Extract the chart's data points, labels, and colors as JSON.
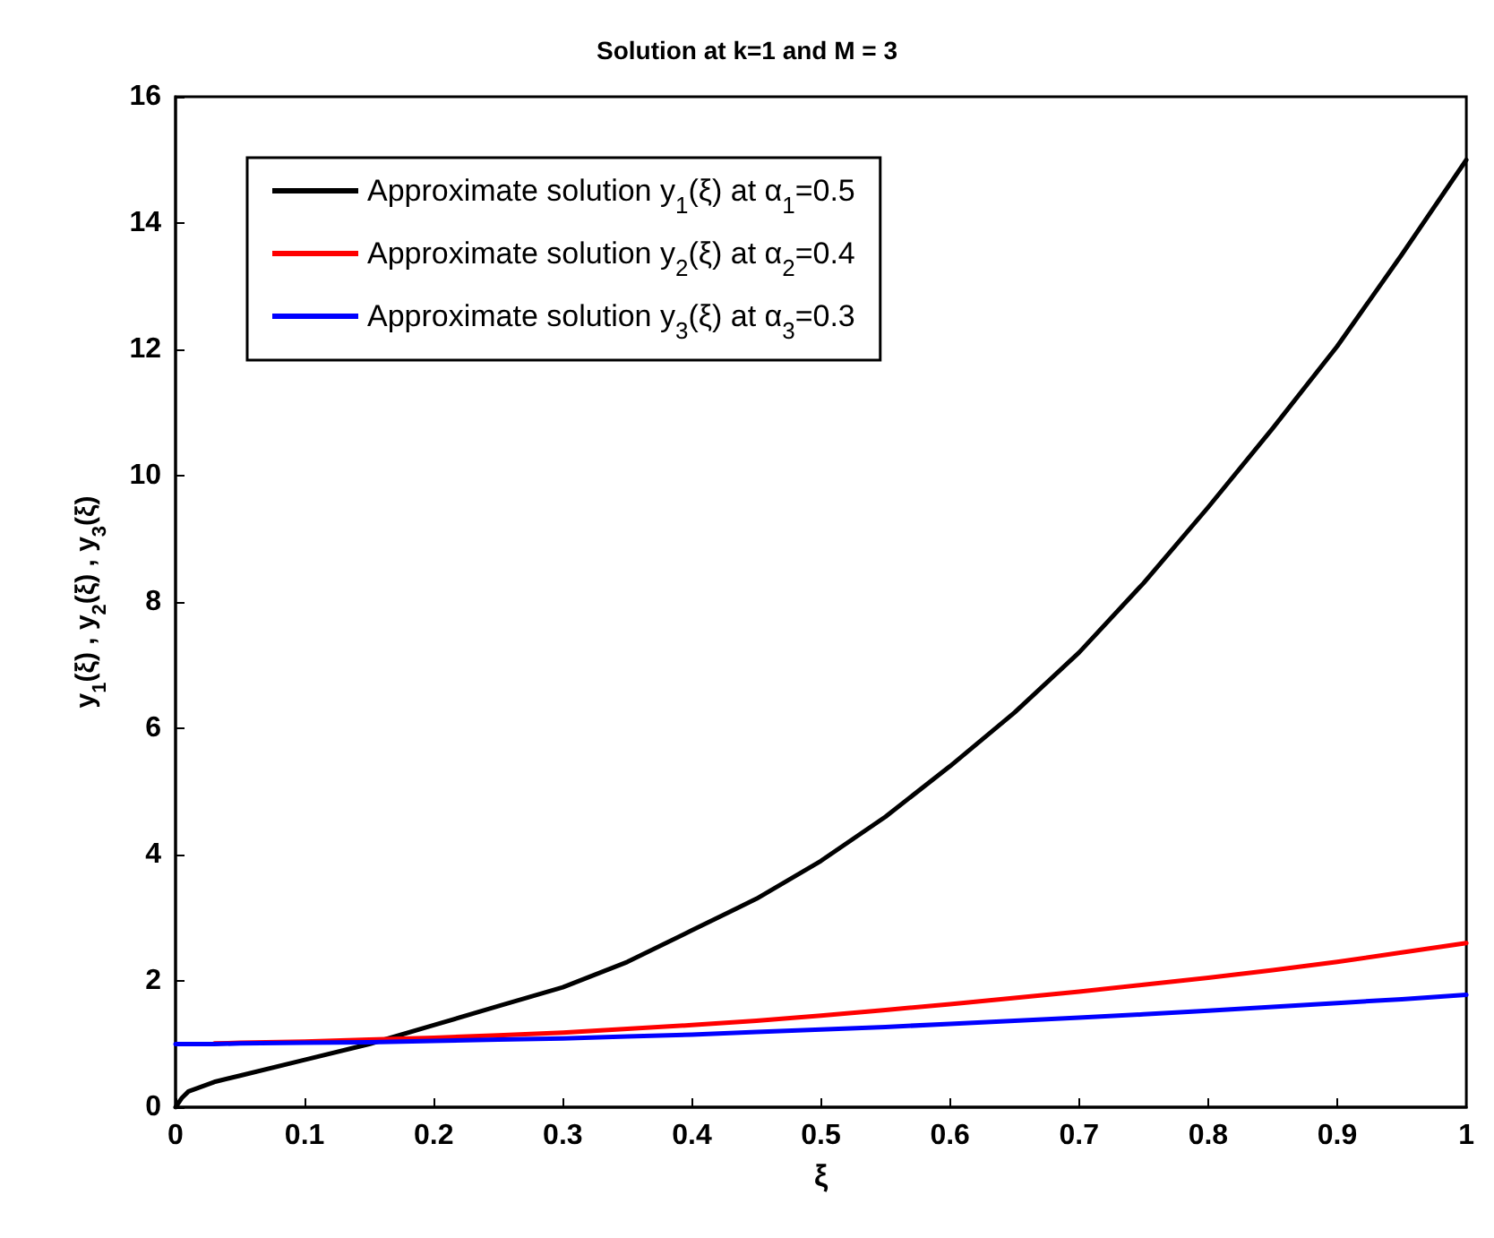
{
  "chart_data": {
    "type": "line",
    "title": "Solution at k=1 and M = 3",
    "xlabel": "ξ",
    "ylabel": "y$_{1}$(ξ) , y$_{2}$(ξ) , y$_{3}$(ξ)",
    "x": [
      0,
      0.005,
      0.01,
      0.03,
      0.05,
      0.1,
      0.15,
      0.2,
      0.25,
      0.3,
      0.35,
      0.4,
      0.45,
      0.5,
      0.55,
      0.6,
      0.65,
      0.7,
      0.75,
      0.8,
      0.85,
      0.9,
      0.95,
      1.0
    ],
    "series": [
      {
        "name": "Approximate solution y$_{1}$(ξ) at α$_{1}$=0.5",
        "color": "#000000",
        "values": [
          0,
          0.15,
          0.25,
          0.4,
          0.5,
          0.75,
          1.0,
          1.3,
          1.6,
          1.9,
          2.3,
          2.8,
          3.3,
          3.9,
          4.6,
          5.4,
          6.25,
          7.2,
          8.3,
          9.5,
          10.75,
          12.05,
          13.5,
          15.0
        ]
      },
      {
        "name": "Approximate solution y$_{2}$(ξ) at α$_{2}$=0.4",
        "color": "#ff0000",
        "values": [
          null,
          null,
          null,
          1.01,
          1.02,
          1.04,
          1.07,
          1.1,
          1.14,
          1.18,
          1.24,
          1.3,
          1.37,
          1.45,
          1.54,
          1.63,
          1.73,
          1.83,
          1.94,
          2.05,
          2.17,
          2.3,
          2.45,
          2.6
        ]
      },
      {
        "name": "Approximate solution y$_{3}$(ξ) at α$_{3}$=0.3",
        "color": "#0000ff",
        "values": [
          1.0,
          1.0,
          1.0,
          1.0,
          1.01,
          1.02,
          1.03,
          1.05,
          1.07,
          1.09,
          1.12,
          1.15,
          1.19,
          1.23,
          1.27,
          1.32,
          1.37,
          1.42,
          1.47,
          1.53,
          1.59,
          1.65,
          1.71,
          1.78
        ]
      }
    ],
    "xlim": [
      0,
      1
    ],
    "xticks": [
      0,
      0.1,
      0.2,
      0.3,
      0.4,
      0.5,
      0.6,
      0.7,
      0.8,
      0.9,
      1
    ],
    "ylim": [
      0,
      16
    ],
    "yticks": [
      0,
      2,
      4,
      6,
      8,
      10,
      12,
      14,
      16
    ],
    "grid": false,
    "legend": "top left",
    "marker": "none",
    "line_style": "solid"
  }
}
